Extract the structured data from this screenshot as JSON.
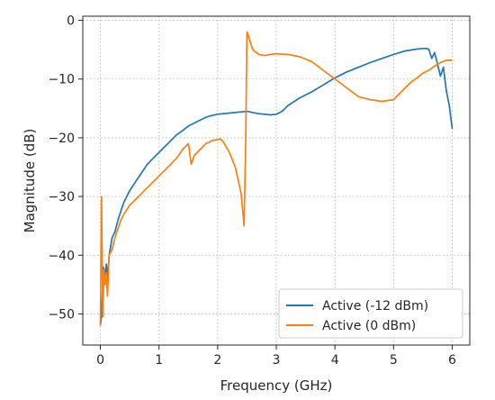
{
  "chart_data": {
    "type": "line",
    "xlabel": "Frequency (GHz)",
    "ylabel": "Magnitude (dB)",
    "xlim": [
      -0.3,
      6.3
    ],
    "ylim": [
      -55.3,
      0.7
    ],
    "xticks": [
      0,
      1,
      2,
      3,
      4,
      5,
      6
    ],
    "yticks": [
      0,
      -10,
      -20,
      -30,
      -40,
      -50
    ],
    "xtick_labels": [
      "0",
      "1",
      "2",
      "3",
      "4",
      "5",
      "6"
    ],
    "ytick_labels": [
      "0",
      "−10",
      "−20",
      "−30",
      "−40",
      "−50"
    ],
    "grid": true,
    "legend_position": "lower-right",
    "series": [
      {
        "name": "Active (-12 dBm)",
        "color": "#1f77b4",
        "x": [
          0.0,
          0.02,
          0.05,
          0.08,
          0.1,
          0.12,
          0.15,
          0.2,
          0.25,
          0.3,
          0.35,
          0.4,
          0.5,
          0.6,
          0.7,
          0.8,
          0.9,
          1.0,
          1.1,
          1.2,
          1.3,
          1.4,
          1.5,
          1.6,
          1.7,
          1.8,
          1.9,
          2.0,
          2.2,
          2.4,
          2.5,
          2.6,
          2.7,
          2.8,
          2.9,
          3.0,
          3.1,
          3.2,
          3.4,
          3.6,
          3.8,
          4.0,
          4.2,
          4.4,
          4.6,
          4.8,
          5.0,
          5.2,
          5.4,
          5.5,
          5.55,
          5.6,
          5.65,
          5.7,
          5.75,
          5.8,
          5.85,
          5.9,
          5.95,
          6.0
        ],
        "y": [
          -52.0,
          -50.5,
          -42.0,
          -43.5,
          -41.5,
          -44.0,
          -40.0,
          -37.0,
          -36.0,
          -34.0,
          -32.5,
          -31.0,
          -29.0,
          -27.5,
          -26.0,
          -24.5,
          -23.5,
          -22.5,
          -21.5,
          -20.5,
          -19.5,
          -18.8,
          -18.0,
          -17.5,
          -17.0,
          -16.5,
          -16.2,
          -16.0,
          -15.8,
          -15.6,
          -15.5,
          -15.7,
          -15.9,
          -16.0,
          -16.1,
          -16.0,
          -15.5,
          -14.5,
          -13.2,
          -12.2,
          -11.0,
          -9.8,
          -8.8,
          -8.0,
          -7.2,
          -6.5,
          -5.8,
          -5.2,
          -4.9,
          -4.8,
          -4.8,
          -4.9,
          -6.5,
          -5.5,
          -7.5,
          -9.5,
          -8.0,
          -12.0,
          -14.5,
          -18.5
        ]
      },
      {
        "name": "Active (0 dBm)",
        "color": "#ff7f0e",
        "x": [
          0.0,
          0.02,
          0.04,
          0.06,
          0.08,
          0.1,
          0.12,
          0.15,
          0.2,
          0.25,
          0.3,
          0.35,
          0.4,
          0.5,
          0.6,
          0.7,
          0.8,
          0.9,
          1.0,
          1.1,
          1.2,
          1.3,
          1.4,
          1.5,
          1.55,
          1.6,
          1.7,
          1.8,
          1.9,
          2.0,
          2.05,
          2.1,
          2.2,
          2.3,
          2.4,
          2.45,
          2.48,
          2.49,
          2.5,
          2.52,
          2.55,
          2.6,
          2.7,
          2.8,
          2.9,
          3.0,
          3.2,
          3.4,
          3.6,
          3.8,
          4.0,
          4.2,
          4.4,
          4.6,
          4.8,
          5.0,
          5.1,
          5.2,
          5.3,
          5.4,
          5.5,
          5.6,
          5.7,
          5.8,
          5.9,
          6.0
        ],
        "y": [
          -52.0,
          -30.0,
          -50.5,
          -42.5,
          -45.0,
          -43.0,
          -47.0,
          -40.0,
          -39.0,
          -37.0,
          -35.5,
          -34.0,
          -33.0,
          -31.5,
          -30.5,
          -29.5,
          -28.5,
          -27.5,
          -26.5,
          -25.5,
          -24.5,
          -23.5,
          -22.0,
          -21.0,
          -24.5,
          -23.0,
          -22.0,
          -21.0,
          -20.5,
          -20.3,
          -20.2,
          -20.8,
          -22.5,
          -25.0,
          -29.5,
          -35.0,
          -20.0,
          -10.0,
          -2.0,
          -2.5,
          -3.5,
          -5.0,
          -5.8,
          -6.0,
          -5.8,
          -5.7,
          -5.8,
          -6.2,
          -7.0,
          -8.5,
          -10.0,
          -11.5,
          -13.0,
          -13.5,
          -13.8,
          -13.5,
          -12.5,
          -11.5,
          -10.5,
          -9.8,
          -9.0,
          -8.5,
          -7.8,
          -7.2,
          -6.8,
          -6.8
        ]
      }
    ]
  }
}
